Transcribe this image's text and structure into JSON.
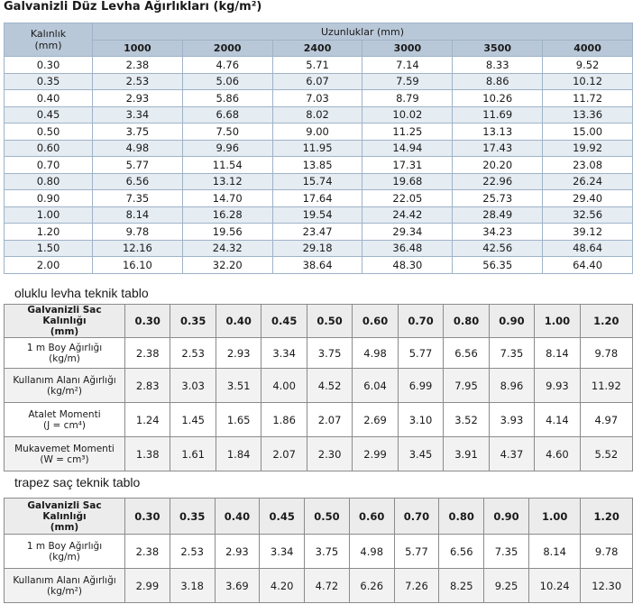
{
  "title": "Galvanizli Düz Levha Ağırlıkları (kg/m²)",
  "table1": {
    "kalinlik_label": "Kalınlık\n(mm)",
    "lengths_label": "Uzunluklar (mm)",
    "lengths": [
      "1000",
      "2000",
      "2400",
      "3000",
      "3500",
      "4000"
    ],
    "rows": [
      [
        "0.30",
        "2.38",
        "4.76",
        "5.71",
        "7.14",
        "8.33",
        "9.52"
      ],
      [
        "0.35",
        "2.53",
        "5.06",
        "6.07",
        "7.59",
        "8.86",
        "10.12"
      ],
      [
        "0.40",
        "2.93",
        "5.86",
        "7.03",
        "8.79",
        "10.26",
        "11.72"
      ],
      [
        "0.45",
        "3.34",
        "6.68",
        "8.02",
        "10.02",
        "11.69",
        "13.36"
      ],
      [
        "0.50",
        "3.75",
        "7.50",
        "9.00",
        "11.25",
        "13.13",
        "15.00"
      ],
      [
        "0.60",
        "4.98",
        "9.96",
        "11.95",
        "14.94",
        "17.43",
        "19.92"
      ],
      [
        "0.70",
        "5.77",
        "11.54",
        "13.85",
        "17.31",
        "20.20",
        "23.08"
      ],
      [
        "0.80",
        "6.56",
        "13.12",
        "15.74",
        "19.68",
        "22.96",
        "26.24"
      ],
      [
        "0.90",
        "7.35",
        "14.70",
        "17.64",
        "22.05",
        "25.73",
        "29.40"
      ],
      [
        "1.00",
        "8.14",
        "16.28",
        "19.54",
        "24.42",
        "28.49",
        "32.56"
      ],
      [
        "1.20",
        "9.78",
        "19.56",
        "23.47",
        "29.34",
        "34.23",
        "39.12"
      ],
      [
        "1.50",
        "12.16",
        "24.32",
        "29.18",
        "36.48",
        "42.56",
        "48.64"
      ],
      [
        "2.00",
        "16.10",
        "32.20",
        "38.64",
        "48.30",
        "56.35",
        "64.40"
      ]
    ]
  },
  "section2_title": "oluklu levha  teknik tablo",
  "table2": {
    "header_label": "Galvanizli Sac Kalınlığı\n(mm)",
    "thicknesses": [
      "0.30",
      "0.35",
      "0.40",
      "0.45",
      "0.50",
      "0.60",
      "0.70",
      "0.80",
      "0.90",
      "1.00",
      "1.20"
    ],
    "rows": [
      {
        "label": "1 m Boy Ağırlığı\n(kg/m)",
        "values": [
          "2.38",
          "2.53",
          "2.93",
          "3.34",
          "3.75",
          "4.98",
          "5.77",
          "6.56",
          "7.35",
          "8.14",
          "9.78"
        ]
      },
      {
        "label": "Kullanım Alanı Ağırlığı\n(kg/m²)",
        "values": [
          "2.83",
          "3.03",
          "3.51",
          "4.00",
          "4.52",
          "6.04",
          "6.99",
          "7.95",
          "8.96",
          "9.93",
          "11.92"
        ]
      },
      {
        "label": "Atalet Momenti\n(J = cm⁴)",
        "values": [
          "1.24",
          "1.45",
          "1.65",
          "1.86",
          "2.07",
          "2.69",
          "3.10",
          "3.52",
          "3.93",
          "4.14",
          "4.97"
        ]
      },
      {
        "label": "Mukavemet Momenti\n(W = cm³)",
        "values": [
          "1.38",
          "1.61",
          "1.84",
          "2.07",
          "2.30",
          "2.99",
          "3.45",
          "3.91",
          "4.37",
          "4.60",
          "5.52"
        ]
      }
    ]
  },
  "section3_title": "trapez saç teknik tablo",
  "table3": {
    "header_label": "Galvanizli Sac Kalınlığı\n(mm)",
    "thicknesses": [
      "0.30",
      "0.35",
      "0.40",
      "0.45",
      "0.50",
      "0.60",
      "0.70",
      "0.80",
      "0.90",
      "1.00",
      "1.20"
    ],
    "rows": [
      {
        "label": "1 m Boy Ağırlığı\n(kg/m)",
        "values": [
          "2.38",
          "2.53",
          "2.93",
          "3.34",
          "3.75",
          "4.98",
          "5.77",
          "6.56",
          "7.35",
          "8.14",
          "9.78"
        ]
      },
      {
        "label": "Kullanım Alanı Ağırlığı\n(kg/m²)",
        "values": [
          "2.99",
          "3.18",
          "3.69",
          "4.20",
          "4.72",
          "6.26",
          "7.26",
          "8.25",
          "9.25",
          "10.24",
          "12.30"
        ]
      }
    ]
  }
}
